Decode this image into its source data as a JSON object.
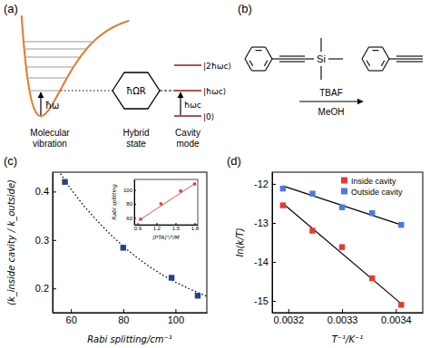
{
  "chart_data": [
    {
      "type": "scatter",
      "title": "(c)",
      "xlabel": "Rabi splitting/cm⁻¹",
      "ylabel": "(k_inside cavity / k_outside)",
      "xlim": [
        53,
        112
      ],
      "ylim": [
        0.15,
        0.44
      ],
      "xticks": [
        60,
        80,
        100
      ],
      "yticks": [
        0.2,
        0.3,
        0.4
      ],
      "series": [
        {
          "type": "line",
          "line_style": "dotted",
          "color": "#000000",
          "x": [
            56,
            60,
            65,
            70,
            75,
            80,
            85,
            90,
            95,
            100,
            105,
            110,
            112
          ],
          "values": [
            0.437,
            0.405,
            0.37,
            0.34,
            0.312,
            0.287,
            0.265,
            0.245,
            0.228,
            0.213,
            0.2,
            0.188,
            0.184
          ]
        },
        {
          "type": "scatter",
          "marker": "square",
          "color": "#27408b",
          "x": [
            57.7,
            80,
            98.5,
            108.5
          ],
          "values": [
            0.42,
            0.284,
            0.222,
            0.185
          ]
        }
      ]
    },
    {
      "type": "scatter",
      "xlabel": "[PTA]¹/²/M",
      "ylabel": "Rabi splitting",
      "xlim": [
        0.85,
        1.85
      ],
      "ylim": [
        50,
        115
      ],
      "xticks": [
        0.9,
        1.2,
        1.5,
        1.8
      ],
      "yticks": [
        60,
        80,
        100
      ],
      "series": [
        {
          "type": "line",
          "line_style": "solid",
          "color": "#e03a2f",
          "x": [
            0.92,
            1.82
          ],
          "values": [
            56,
            110
          ]
        },
        {
          "type": "scatter",
          "marker": "square",
          "color": "#e03a2f",
          "x": [
            0.95,
            1.27,
            1.58,
            1.8
          ],
          "values": [
            58,
            80,
            98.5,
            108.5
          ]
        }
      ]
    },
    {
      "type": "scatter",
      "title": "(d)",
      "xlabel": "T⁻¹/K⁻¹",
      "ylabel": "ln(k/T)",
      "xlim": [
        0.00317,
        0.00345
      ],
      "ylim": [
        -15.3,
        -11.7
      ],
      "xticks": [
        0.0032,
        0.0033,
        0.0034
      ],
      "yticks": [
        -15,
        -14,
        -13,
        -12
      ],
      "legend": "upper right",
      "series": [
        {
          "type": "line",
          "line_style": "solid",
          "color": "#000000",
          "x": [
            0.00319,
            0.00341
          ],
          "values": [
            -12.5,
            -15.07
          ]
        },
        {
          "type": "line",
          "line_style": "solid",
          "color": "#000000",
          "x": [
            0.00319,
            0.00341
          ],
          "values": [
            -12.05,
            -13.05
          ]
        },
        {
          "type": "scatter",
          "name": "Inside cavity",
          "marker": "square",
          "color": "#e63b2e",
          "x": [
            0.00319,
            0.003245,
            0.0033,
            0.003356,
            0.00341
          ],
          "values": [
            -12.55,
            -13.2,
            -13.62,
            -14.42,
            -15.1
          ]
        },
        {
          "type": "scatter",
          "name": "Outside cavity",
          "marker": "square",
          "color": "#4a79e0",
          "x": [
            0.00319,
            0.003245,
            0.0033,
            0.003356,
            0.00341
          ],
          "values": [
            -12.12,
            -12.25,
            -12.6,
            -12.75,
            -13.05
          ]
        }
      ]
    }
  ],
  "diagram_a": {
    "title": "(a)",
    "vibration_quantum": "ħω",
    "rabi_splitting": "ħΩR",
    "cavity_levels": [
      "|2ħωc⟩",
      "|ħωc⟩",
      "|0⟩"
    ],
    "cavity_quantum": "ħωc",
    "captions": [
      [
        "Molecular",
        "vibration"
      ],
      [
        "Hybrid",
        "state"
      ],
      [
        "Cavity",
        "mode"
      ]
    ]
  },
  "diagram_b": {
    "title": "(b)",
    "reactant_atom": "Si",
    "reagent": "TBAF",
    "solvent": "MeOH"
  }
}
